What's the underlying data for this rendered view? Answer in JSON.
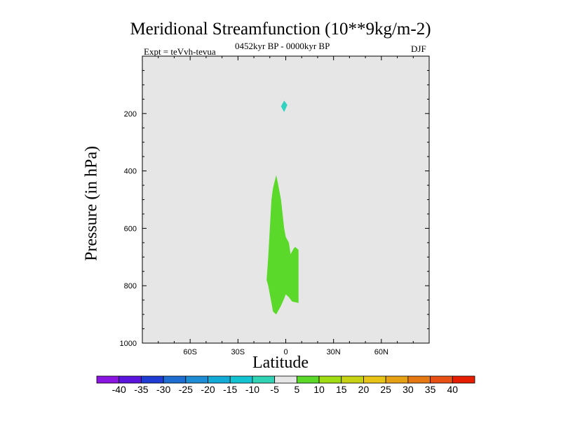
{
  "chart_data": {
    "type": "contour",
    "title": "Meridional Streamfunction (10**9kg/m-2)",
    "left_annotation": "Expt = teVvh-tevua",
    "center_annotation": "0452kyr BP - 0000kyr BP",
    "right_annotation": "DJF",
    "xlabel": "Latitude",
    "ylabel": "Pressure (in hPa)",
    "x_axis": {
      "range": [
        -90,
        90
      ],
      "ticks": [
        -60,
        -30,
        0,
        30,
        60
      ],
      "tick_labels": [
        "60S",
        "30S",
        "0",
        "30N",
        "60N"
      ]
    },
    "y_axis": {
      "range": [
        1000,
        0
      ],
      "inverted": true,
      "ticks": [
        200,
        400,
        600,
        800,
        1000
      ],
      "tick_labels": [
        "200",
        "400",
        "600",
        "800",
        "1000"
      ]
    },
    "background_color": "#e6e6e6",
    "filled_regions": [
      {
        "level": "5 to 10",
        "color": "#5ad92a",
        "polygon": [
          [
            -6,
            415
          ],
          [
            -5,
            440
          ],
          [
            -3,
            500
          ],
          [
            -2,
            550
          ],
          [
            -1,
            600
          ],
          [
            0,
            630
          ],
          [
            2,
            650
          ],
          [
            3,
            690
          ],
          [
            5,
            670
          ],
          [
            6,
            665
          ],
          [
            8,
            675
          ],
          [
            8,
            860
          ],
          [
            4,
            855
          ],
          [
            2,
            840
          ],
          [
            0,
            830
          ],
          [
            -1,
            845
          ],
          [
            -3,
            870
          ],
          [
            -6,
            900
          ],
          [
            -8,
            890
          ],
          [
            -9,
            860
          ],
          [
            -11,
            800
          ],
          [
            -12,
            780
          ],
          [
            -11,
            700
          ],
          [
            -10,
            600
          ],
          [
            -9,
            500
          ],
          [
            -8,
            460
          ]
        ]
      },
      {
        "level": "-10 to -5",
        "color": "#32d2c0",
        "polygon": [
          [
            -1,
            155
          ],
          [
            1,
            170
          ],
          [
            -1,
            195
          ],
          [
            -3,
            175
          ]
        ]
      }
    ],
    "colorbar": {
      "labels": [
        "-40",
        "-35",
        "-30",
        "-25",
        "-20",
        "-15",
        "-10",
        "-5",
        "5",
        "10",
        "15",
        "20",
        "25",
        "30",
        "35",
        "40"
      ],
      "colors": [
        "#8a14e0",
        "#5a14dc",
        "#1e3cd2",
        "#1e6ed2",
        "#1e8cd2",
        "#14aad7",
        "#14c3d2",
        "#32d2b4",
        "#e6e6e6",
        "#5ad92a",
        "#a0dc14",
        "#c8d214",
        "#e6c314",
        "#e6a014",
        "#e67814",
        "#e65014",
        "#e61e00"
      ]
    }
  }
}
